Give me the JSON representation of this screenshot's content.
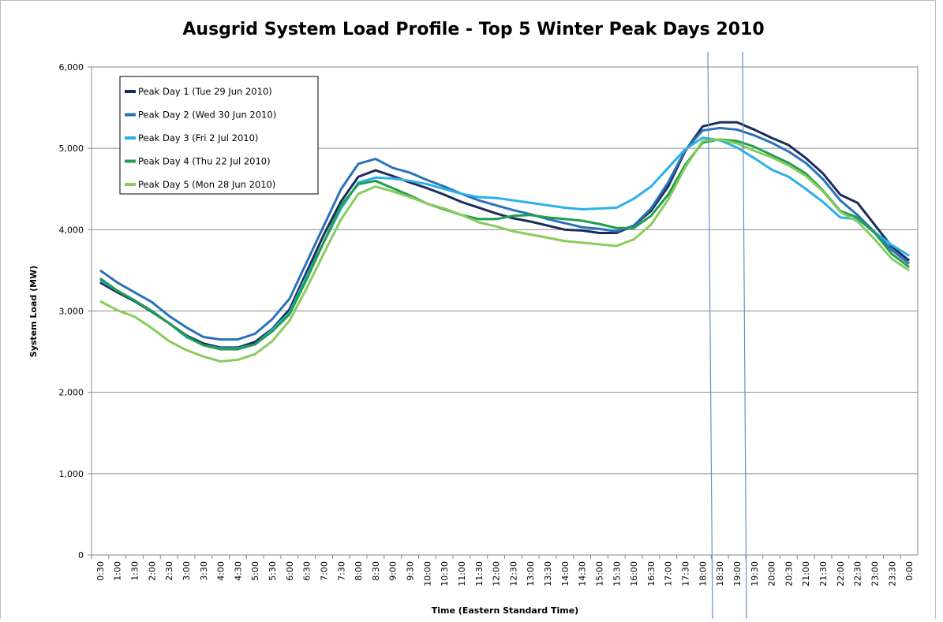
{
  "chart_data": {
    "type": "line",
    "title": "Ausgrid System Load Profile - Top 5 Winter Peak Days 2010",
    "x_label": "Time (Eastern Standard Time)",
    "y_label": "System Load (MW)",
    "categories": [
      "0:30",
      "1:00",
      "1:30",
      "2:00",
      "2:30",
      "3:00",
      "3:30",
      "4:00",
      "4:30",
      "5:00",
      "5:30",
      "6:00",
      "6:30",
      "7:00",
      "7:30",
      "8:00",
      "8:30",
      "9:00",
      "9:30",
      "10:00",
      "10:30",
      "11:00",
      "11:30",
      "12:00",
      "12:30",
      "13:00",
      "13:30",
      "14:00",
      "14:30",
      "15:00",
      "15:30",
      "16:00",
      "16:30",
      "17:00",
      "17:30",
      "18:00",
      "18:30",
      "19:00",
      "19:30",
      "20:00",
      "20:30",
      "21:00",
      "21:30",
      "22:00",
      "22:30",
      "23:00",
      "23:30",
      "0:00"
    ],
    "series": [
      {
        "name": "Peak Day 1 (Tue 29 Jun 2010)",
        "color": "#1b2b5c",
        "values": [
          3350,
          3230,
          3120,
          2990,
          2850,
          2700,
          2600,
          2550,
          2550,
          2620,
          2780,
          3020,
          3480,
          3940,
          4350,
          4650,
          4730,
          4660,
          4580,
          4510,
          4430,
          4340,
          4270,
          4200,
          4140,
          4100,
          4050,
          4000,
          3990,
          3960,
          3960,
          4050,
          4230,
          4530,
          4970,
          5270,
          5320,
          5320,
          5230,
          5130,
          5040,
          4880,
          4690,
          4430,
          4330,
          4060,
          3790,
          3620
        ]
      },
      {
        "name": "Peak Day 2 (Wed 30 Jun 2010)",
        "color": "#2a72b8",
        "values": [
          3500,
          3350,
          3230,
          3110,
          2940,
          2800,
          2680,
          2650,
          2650,
          2720,
          2900,
          3150,
          3600,
          4050,
          4500,
          4810,
          4870,
          4760,
          4700,
          4610,
          4530,
          4440,
          4360,
          4300,
          4240,
          4190,
          4130,
          4080,
          4030,
          4010,
          3980,
          4050,
          4260,
          4580,
          4980,
          5220,
          5250,
          5230,
          5160,
          5070,
          4960,
          4820,
          4620,
          4360,
          4180,
          3970,
          3750,
          3580
        ]
      },
      {
        "name": "Peak Day 3 (Fri 2 Jul 2010)",
        "color": "#2cb0e8",
        "values": [
          3380,
          3250,
          3130,
          3000,
          2850,
          2680,
          2580,
          2540,
          2540,
          2590,
          2770,
          2980,
          3430,
          3850,
          4260,
          4580,
          4640,
          4630,
          4600,
          4560,
          4500,
          4440,
          4400,
          4390,
          4360,
          4330,
          4300,
          4270,
          4250,
          4260,
          4270,
          4380,
          4530,
          4760,
          4990,
          5130,
          5100,
          5010,
          4880,
          4740,
          4650,
          4500,
          4340,
          4150,
          4130,
          3970,
          3810,
          3680
        ]
      },
      {
        "name": "Peak Day 4 (Thu 22 Jul 2010)",
        "color": "#1f9e4c",
        "values": [
          3400,
          3250,
          3130,
          3000,
          2850,
          2690,
          2580,
          2530,
          2530,
          2590,
          2750,
          2960,
          3390,
          3850,
          4300,
          4560,
          4600,
          4510,
          4420,
          4320,
          4250,
          4180,
          4130,
          4130,
          4170,
          4180,
          4150,
          4130,
          4110,
          4070,
          4020,
          4020,
          4170,
          4430,
          4800,
          5070,
          5110,
          5090,
          5020,
          4920,
          4820,
          4690,
          4480,
          4230,
          4150,
          3960,
          3700,
          3540
        ]
      },
      {
        "name": "Peak Day 5 (Mon 28 Jun 2010)",
        "color": "#88cc5c",
        "values": [
          3120,
          3010,
          2930,
          2790,
          2630,
          2520,
          2440,
          2380,
          2400,
          2470,
          2630,
          2880,
          3280,
          3710,
          4130,
          4440,
          4530,
          4470,
          4400,
          4320,
          4260,
          4180,
          4090,
          4040,
          3980,
          3940,
          3900,
          3860,
          3840,
          3820,
          3800,
          3880,
          4060,
          4370,
          4770,
          5090,
          5110,
          5060,
          4970,
          4890,
          4790,
          4660,
          4470,
          4220,
          4100,
          3880,
          3640,
          3500
        ]
      }
    ],
    "ylim": [
      0,
      6000
    ],
    "yticks": [
      0,
      {
        "value": 1000,
        "label": "1,000"
      },
      {
        "value": 2000,
        "label": "2,000"
      },
      {
        "value": 3000,
        "label": "3,000"
      },
      {
        "value": 4000,
        "label": "4,000"
      },
      {
        "value": 5000,
        "label": "5,000"
      },
      {
        "value": 6000,
        "label": "6,000"
      }
    ],
    "grid": true,
    "legend": "upper left"
  }
}
